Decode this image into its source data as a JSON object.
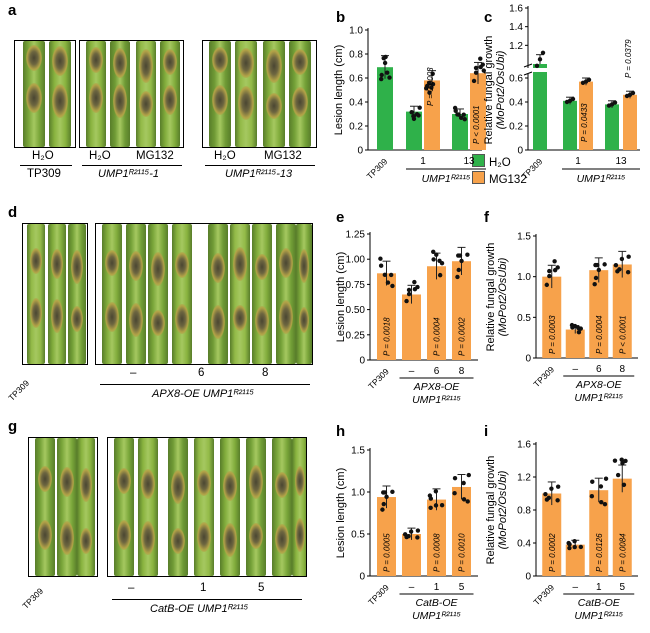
{
  "figure": {
    "panels": {
      "a": {
        "letter": "a",
        "ctrl_label": "H₂O",
        "group_ctrl": "TP309",
        "group_l1": "UMP1ᴿ²¹¹⁵-1",
        "group_l2": "UMP1ᴿ²¹¹⁵-13",
        "h2o": "H₂O",
        "mg132": "MG132"
      },
      "d": {
        "letter": "d",
        "tp309": "TP309",
        "dash": "–",
        "six": "6",
        "eight": "8",
        "group": "APX8-OE UMP1ᴿ²¹¹⁵"
      },
      "g": {
        "letter": "g",
        "tp309": "TP309",
        "dash": "–",
        "one": "1",
        "five": "5",
        "group": "CatB-OE UMP1ᴿ²¹¹⁵"
      }
    },
    "legend": {
      "h2o": "H₂O",
      "mg132": "MG132",
      "h2o_color": "#2fb14a",
      "mg132_color": "#f7a24b"
    }
  },
  "chart_data": [
    {
      "id": "b",
      "letter": "b",
      "type": "bar",
      "ylabel": "Lesion length (cm)",
      "ylim": [
        0,
        1.0
      ],
      "yticks": [
        "0",
        "0.2",
        "0.4",
        "0.6",
        "0.8",
        "1.0"
      ],
      "tick_labels": [
        "TP309",
        "1",
        "13"
      ],
      "group": "UMP1ᴿ²¹¹⁵",
      "bars": [
        {
          "value": 0.69,
          "color": "green"
        },
        {
          "value": 0.32,
          "color": "green"
        },
        {
          "value": 0.58,
          "color": "orange"
        },
        {
          "value": 0.3,
          "color": "green"
        },
        {
          "value": 0.64,
          "color": "orange"
        }
      ],
      "annotations": [
        "P = 0.0003",
        "P < 0.0001"
      ]
    },
    {
      "id": "c",
      "letter": "c",
      "type": "bar",
      "ylabel": "Relative fungal growth",
      "ylabel2": "(MoPot2/OsUbi)",
      "yticks_upper": [
        "1.2",
        "1.4",
        "1.6"
      ],
      "yticks_lower": [
        "0",
        "0.2",
        "0.4",
        "0.6"
      ],
      "tick_labels": [
        "TP309",
        "1",
        "13"
      ],
      "group": "UMP1ᴿ²¹¹⁵",
      "bars": [
        {
          "value": 1.0,
          "color": "green"
        },
        {
          "value": 0.41,
          "color": "green"
        },
        {
          "value": 0.57,
          "color": "orange"
        },
        {
          "value": 0.38,
          "color": "green"
        },
        {
          "value": 0.46,
          "color": "orange"
        }
      ],
      "annotations": [
        "P = 0.0433",
        "P = 0.0379"
      ]
    },
    {
      "id": "e",
      "letter": "e",
      "type": "bar",
      "ylabel": "Lesion length (cm)",
      "ylim": [
        0,
        1.25
      ],
      "yticks": [
        "0",
        "0.25",
        "0.50",
        "0.75",
        "1.00",
        "1.25"
      ],
      "tick_labels": [
        "TP309",
        "–",
        "6",
        "8"
      ],
      "group1": "APX8-OE",
      "group2": "UMP1ᴿ²¹¹⁵",
      "values": [
        0.86,
        0.65,
        0.93,
        0.98
      ],
      "annotations": [
        "P = 0.0018",
        "P = 0.0004",
        "P = 0.0002"
      ]
    },
    {
      "id": "f",
      "letter": "f",
      "type": "bar",
      "ylabel": "Relative fungal growth",
      "ylabel2": "(MoPot2/OsUbi)",
      "ylim": [
        0,
        1.5
      ],
      "yticks": [
        "0",
        "0.5",
        "1.0",
        "1.5"
      ],
      "tick_labels": [
        "TP309",
        "–",
        "6",
        "8"
      ],
      "group1": "APX8-OE",
      "group2": "UMP1ᴿ²¹¹⁵",
      "values": [
        1.0,
        0.35,
        1.08,
        1.15
      ],
      "annotations": [
        "P = 0.0003",
        "P = 0.0004",
        "P < 0.0001"
      ]
    },
    {
      "id": "h",
      "letter": "h",
      "type": "bar",
      "ylabel": "Lesion length (cm)",
      "ylim": [
        0,
        1.5
      ],
      "yticks": [
        "0",
        "0.5",
        "1.0",
        "1.5"
      ],
      "tick_labels": [
        "TP309",
        "–",
        "1",
        "5"
      ],
      "group1": "CatB-OE",
      "group2": "UMP1ᴿ²¹¹⁵",
      "values": [
        0.94,
        0.5,
        0.91,
        1.06
      ],
      "annotations": [
        "P = 0.0005",
        "P = 0.0008",
        "P = 0.0010"
      ]
    },
    {
      "id": "i",
      "letter": "i",
      "type": "bar",
      "ylabel": "Relative fungal growth",
      "ylabel2": "(MoPot2/OsUbi)",
      "ylim": [
        0,
        1.6
      ],
      "yticks": [
        "0",
        "0.4",
        "0.8",
        "1.2",
        "1.6"
      ],
      "tick_labels": [
        "TP309",
        "–",
        "1",
        "5"
      ],
      "group1": "CatB-OE",
      "group2": "UMP1ᴿ²¹¹⁵",
      "values": [
        1.0,
        0.38,
        1.04,
        1.18
      ],
      "annotations": [
        "P = 0.0002",
        "P = 0.0126",
        "P = 0.0084"
      ]
    }
  ]
}
